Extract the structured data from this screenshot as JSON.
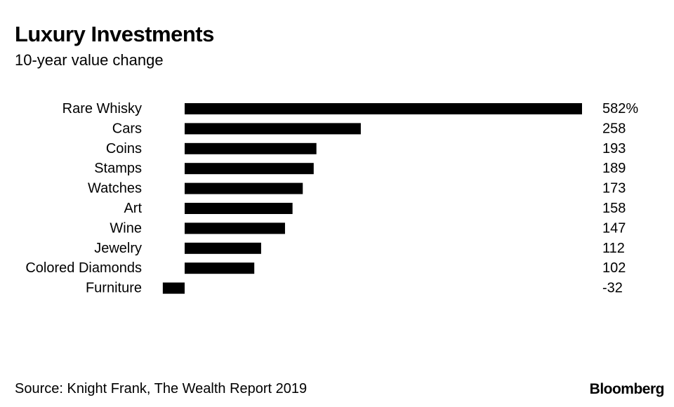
{
  "chart_data": {
    "type": "bar",
    "orientation": "horizontal",
    "title": "Luxury Investments",
    "subtitle": "10-year value change",
    "categories": [
      "Rare Whisky",
      "Cars",
      "Coins",
      "Stamps",
      "Watches",
      "Art",
      "Wine",
      "Jewelry",
      "Colored Diamonds",
      "Furniture"
    ],
    "values": [
      582,
      258,
      193,
      189,
      173,
      158,
      147,
      112,
      102,
      -32
    ],
    "value_labels": [
      "582%",
      "258",
      "193",
      "189",
      "173",
      "158",
      "147",
      "112",
      "102",
      "-32"
    ],
    "unit": "%",
    "xlim": [
      -32,
      582
    ],
    "xlabel": "",
    "ylabel": "",
    "grid": false,
    "legend": "none",
    "bar_color": "#000000"
  },
  "footer": {
    "source": "Source: Knight Frank, The Wealth Report 2019",
    "brand": "Bloomberg"
  }
}
